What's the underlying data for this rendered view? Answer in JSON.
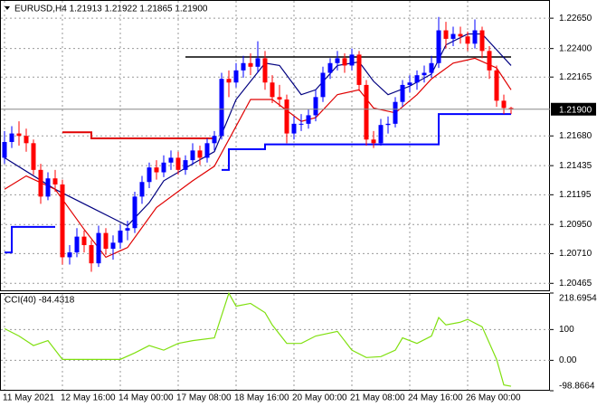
{
  "chart_data": [
    {
      "type": "candlestick",
      "title": "EURUSD,H4  1.21913 1.21922 1.21865 1.21900",
      "categories": [
        "11 May 2021",
        null,
        null,
        null,
        null,
        null,
        null,
        null,
        "12 May 16:00",
        null,
        null,
        null,
        null,
        null,
        null,
        null,
        "14 May 00:00",
        null,
        null,
        null,
        null,
        null,
        null,
        null,
        "17 May 08:00",
        null,
        null,
        null,
        null,
        null,
        null,
        null,
        "18 May 16:00",
        null,
        null,
        null,
        null,
        null,
        null,
        null,
        "20 May 00:00",
        null,
        null,
        null,
        null,
        null,
        null,
        null,
        "21 May 08:00",
        null,
        null,
        null,
        null,
        null,
        null,
        null,
        "24 May 16:00",
        null,
        null,
        null,
        null,
        null,
        null,
        null,
        "26 May 00:00",
        null,
        null,
        null,
        null,
        null,
        null
      ],
      "ohlc": [
        [
          1.215,
          1.2172,
          1.2145,
          1.2163
        ],
        [
          1.2163,
          1.2176,
          1.2158,
          1.217
        ],
        [
          1.217,
          1.218,
          1.216,
          1.2168
        ],
        [
          1.2168,
          1.2174,
          1.2155,
          1.2162
        ],
        [
          1.2162,
          1.2165,
          1.2136,
          1.214
        ],
        [
          1.214,
          1.2145,
          1.2112,
          1.2118
        ],
        [
          1.2118,
          1.2138,
          1.2115,
          1.2133
        ],
        [
          1.2133,
          1.214,
          1.2122,
          1.2128
        ],
        [
          1.2128,
          1.2132,
          1.2062,
          1.2068
        ],
        [
          1.2068,
          1.2078,
          1.2062,
          1.2072
        ],
        [
          1.2072,
          1.2092,
          1.2068,
          1.2085
        ],
        [
          1.2085,
          1.209,
          1.2072,
          1.2078
        ],
        [
          1.2078,
          1.2082,
          1.2056,
          1.2063
        ],
        [
          1.2063,
          1.2094,
          1.206,
          1.2088
        ],
        [
          1.2088,
          1.2092,
          1.207,
          1.2075
        ],
        [
          1.2075,
          1.2086,
          1.2066,
          1.208
        ],
        [
          1.208,
          1.2095,
          1.2075,
          1.209
        ],
        [
          1.209,
          1.2098,
          1.2082,
          1.2092
        ],
        [
          1.2092,
          1.2122,
          1.2088,
          1.2118
        ],
        [
          1.2118,
          1.2135,
          1.2112,
          1.213
        ],
        [
          1.213,
          1.2146,
          1.2125,
          1.2142
        ],
        [
          1.2142,
          1.2148,
          1.2132,
          1.2138
        ],
        [
          1.2138,
          1.2152,
          1.2134,
          1.2146
        ],
        [
          1.2146,
          1.2156,
          1.214,
          1.215
        ],
        [
          1.215,
          1.2155,
          1.2136,
          1.214
        ],
        [
          1.214,
          1.2152,
          1.2136,
          1.2148
        ],
        [
          1.2148,
          1.2162,
          1.2144,
          1.2156
        ],
        [
          1.2156,
          1.216,
          1.2144,
          1.215
        ],
        [
          1.215,
          1.2166,
          1.2146,
          1.2162
        ],
        [
          1.2162,
          1.2172,
          1.2156,
          1.2168
        ],
        [
          1.2168,
          1.222,
          1.2165,
          1.2215
        ],
        [
          1.2215,
          1.2222,
          1.22,
          1.2212
        ],
        [
          1.2212,
          1.2228,
          1.2208,
          1.2222
        ],
        [
          1.2222,
          1.2234,
          1.2216,
          1.2228
        ],
        [
          1.2228,
          1.2236,
          1.2218,
          1.2225
        ],
        [
          1.2225,
          1.2246,
          1.222,
          1.2232
        ],
        [
          1.2232,
          1.2238,
          1.2206,
          1.2212
        ],
        [
          1.2212,
          1.2218,
          1.2195,
          1.22
        ],
        [
          1.22,
          1.221,
          1.2192,
          1.2198
        ],
        [
          1.2198,
          1.2202,
          1.2162,
          1.217
        ],
        [
          1.217,
          1.2184,
          1.2165,
          1.2178
        ],
        [
          1.2178,
          1.2186,
          1.2172,
          1.2178
        ],
        [
          1.2178,
          1.219,
          1.2174,
          1.2185
        ],
        [
          1.2185,
          1.2206,
          1.218,
          1.22
        ],
        [
          1.22,
          1.2225,
          1.2196,
          1.222
        ],
        [
          1.222,
          1.2232,
          1.2215,
          1.2228
        ],
        [
          1.2228,
          1.2238,
          1.2222,
          1.2232
        ],
        [
          1.2232,
          1.2236,
          1.222,
          1.2226
        ],
        [
          1.2226,
          1.224,
          1.2222,
          1.2235
        ],
        [
          1.2235,
          1.2238,
          1.2205,
          1.221
        ],
        [
          1.221,
          1.2214,
          1.216,
          1.2165
        ],
        [
          1.2165,
          1.2172,
          1.2158,
          1.2162
        ],
        [
          1.2162,
          1.2182,
          1.216,
          1.2177
        ],
        [
          1.2177,
          1.2184,
          1.217,
          1.2178
        ],
        [
          1.2178,
          1.22,
          1.2175,
          1.2196
        ],
        [
          1.2196,
          1.2214,
          1.2192,
          1.221
        ],
        [
          1.221,
          1.2218,
          1.2204,
          1.2212
        ],
        [
          1.2212,
          1.2222,
          1.2206,
          1.2218
        ],
        [
          1.2218,
          1.2226,
          1.2212,
          1.222
        ],
        [
          1.222,
          1.2234,
          1.2216,
          1.2228
        ],
        [
          1.2228,
          1.2266,
          1.2224,
          1.2255
        ],
        [
          1.2255,
          1.2262,
          1.224,
          1.2248
        ],
        [
          1.2248,
          1.2258,
          1.2242,
          1.2252
        ],
        [
          1.2252,
          1.2258,
          1.2244,
          1.225
        ],
        [
          1.225,
          1.2254,
          1.2238,
          1.2244
        ],
        [
          1.2244,
          1.2264,
          1.224,
          1.2255
        ],
        [
          1.2255,
          1.2258,
          1.2232,
          1.2238
        ],
        [
          1.2238,
          1.2242,
          1.2215,
          1.2222
        ],
        [
          1.2222,
          1.2226,
          1.2192,
          1.2197
        ],
        [
          1.2197,
          1.2202,
          1.2186,
          1.2191
        ],
        [
          1.2191,
          1.2192,
          1.2186,
          1.219
        ]
      ],
      "up_color": "#0000ff",
      "down_color": "#ff0000",
      "ylim": [
        1.204,
        1.228
      ],
      "yticks": [
        {
          "value": 1.2265,
          "label": "1.22650"
        },
        {
          "value": 1.224,
          "label": "1.22400"
        },
        {
          "value": 1.22165,
          "label": "1.22165"
        },
        {
          "value": 1.2168,
          "label": "1.21680"
        },
        {
          "value": 1.21435,
          "label": "1.21435"
        },
        {
          "value": 1.21195,
          "label": "1.21195"
        },
        {
          "value": 1.2095,
          "label": "1.20950"
        },
        {
          "value": 1.2071,
          "label": "1.20710"
        },
        {
          "value": 1.20465,
          "label": "1.20465"
        }
      ],
      "grid": true,
      "last_price": {
        "value": 1.219,
        "label": "1.21900"
      },
      "lines": [
        {
          "color": "#000080",
          "x": [
            0,
            7,
            12,
            17,
            20,
            22,
            26,
            29,
            32,
            36,
            38,
            41,
            43,
            46,
            49,
            51,
            53,
            56,
            59,
            61,
            64,
            66,
            68,
            70
          ],
          "values": [
            1.215,
            1.2124,
            1.2109,
            1.2094,
            1.2113,
            1.2131,
            1.2145,
            1.2155,
            1.2198,
            1.2228,
            1.2226,
            1.2202,
            1.2206,
            1.2226,
            1.2229,
            1.2213,
            1.2202,
            1.2209,
            1.2219,
            1.2243,
            1.2252,
            1.2252,
            1.2239,
            1.2226
          ]
        },
        {
          "color": "#e00000",
          "x": [
            0,
            3,
            7,
            11,
            14,
            17,
            21,
            26,
            29,
            32,
            34,
            37,
            41,
            43,
            46,
            49,
            51,
            54,
            57,
            59,
            62,
            65,
            68,
            70
          ],
          "values": [
            1.2124,
            1.2135,
            1.2124,
            1.2091,
            1.2068,
            1.2076,
            1.2109,
            1.2131,
            1.2143,
            1.2176,
            1.2198,
            1.2198,
            1.218,
            1.2183,
            1.2202,
            1.2206,
            1.2191,
            1.2187,
            1.2202,
            1.2215,
            1.2228,
            1.2232,
            1.2224,
            1.2206
          ]
        },
        {
          "color": "#0000ff",
          "step": true,
          "x": [
            0,
            1,
            7,
            8,
            30,
            31,
            36,
            59,
            60,
            70
          ],
          "values": [
            1.2072,
            1.2093,
            1.2093,
            null,
            1.214,
            1.2157,
            1.2161,
            1.2161,
            1.2186,
            1.2186
          ]
        },
        {
          "color": "#e00000",
          "step": true,
          "x": [
            8,
            11,
            12,
            29
          ],
          "values": [
            1.2171,
            1.2171,
            1.2166,
            1.2166
          ]
        }
      ],
      "hline": {
        "value": 1.2233,
        "x": [
          25,
          70
        ],
        "color": "#000000"
      }
    },
    {
      "type": "line",
      "title": "CCI(40) -84.4318",
      "x": [
        0,
        2,
        4,
        6,
        8,
        10,
        13,
        16,
        18,
        20,
        22,
        24,
        26,
        29,
        31,
        32,
        34,
        36,
        37,
        39,
        41,
        43,
        46,
        48,
        50,
        52,
        54,
        55,
        57,
        59,
        60,
        61,
        63,
        64,
        66,
        68,
        69,
        70
      ],
      "values": [
        103,
        79,
        48,
        64,
        3,
        3,
        3,
        3,
        24,
        48,
        33,
        55,
        64,
        73,
        218,
        176,
        185,
        155,
        115,
        55,
        55,
        79,
        94,
        33,
        9,
        12,
        33,
        73,
        55,
        79,
        139,
        115,
        124,
        133,
        109,
        3,
        -80,
        -84.4318
      ],
      "color": "#80e010",
      "ylim": [
        -98.8664,
        218.6954
      ],
      "yticks": [
        218.6954,
        100,
        {
          "value": 0,
          "label": "0.00"
        },
        -98.8664
      ],
      "grid": true
    }
  ]
}
